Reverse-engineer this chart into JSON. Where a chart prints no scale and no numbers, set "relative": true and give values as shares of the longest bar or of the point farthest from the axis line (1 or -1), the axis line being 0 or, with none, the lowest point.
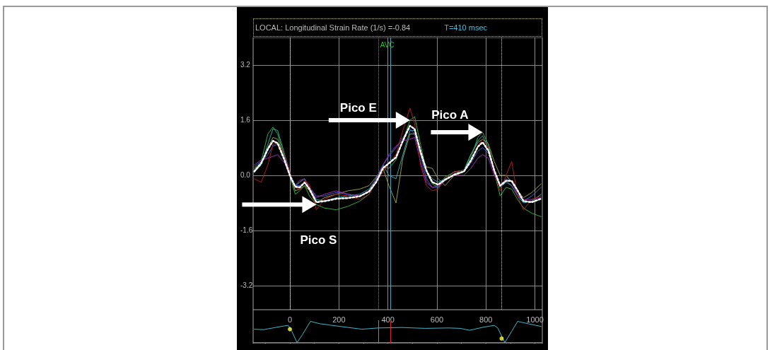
{
  "chart_data": [
    {
      "type": "line",
      "title": "LOCAL: Longitudinal Strain Rate (1/s) =-0.84",
      "subtitle": "T=410 msec",
      "x": [
        -145,
        -117,
        -90,
        -69,
        -50,
        -21,
        3,
        22,
        40,
        60,
        80,
        108,
        141,
        189,
        237,
        285,
        323,
        352,
        380,
        404,
        433,
        461,
        490,
        509,
        533,
        557,
        581,
        605,
        633,
        671,
        710,
        738,
        767,
        786,
        810,
        834,
        858,
        882,
        905,
        929,
        953,
        987,
        1025
      ],
      "series": [
        {
          "color": "#9a9a3a",
          "values": [
            0.2,
            0.35,
            0.8,
            1.1,
            1.05,
            0.5,
            0.0,
            -0.45,
            -0.4,
            -0.3,
            -0.45,
            -0.8,
            -0.65,
            -0.55,
            -0.45,
            -0.4,
            -0.3,
            -0.05,
            0.2,
            -0.3,
            -0.8,
            0.5,
            1.2,
            1.2,
            0.6,
            0.25,
            0.2,
            -0.1,
            -0.3,
            0.0,
            0.1,
            0.6,
            0.95,
            1.05,
            0.9,
            0.4,
            0.0,
            0.0,
            -0.2,
            -0.45,
            -0.65,
            -0.5,
            -0.25
          ]
        },
        {
          "color": "#2fae3a",
          "values": [
            0.15,
            0.4,
            1.2,
            1.4,
            1.2,
            0.5,
            -0.1,
            -0.55,
            -0.45,
            -0.3,
            -0.6,
            -0.85,
            -0.95,
            -1.0,
            -0.9,
            -0.75,
            -0.55,
            -0.2,
            0.25,
            0.2,
            0.45,
            1.0,
            1.6,
            1.7,
            0.9,
            0.1,
            -0.25,
            -0.35,
            -0.05,
            0.1,
            0.1,
            0.5,
            1.1,
            1.25,
            0.9,
            0.1,
            -0.6,
            -0.35,
            -0.4,
            -0.7,
            -0.95,
            -1.1,
            -1.2
          ]
        },
        {
          "color": "#2aa6b0",
          "values": [
            0.1,
            0.3,
            0.9,
            1.35,
            1.3,
            0.6,
            0.0,
            -0.3,
            -0.2,
            -0.1,
            -0.4,
            -0.7,
            -0.75,
            -0.65,
            -0.6,
            -0.55,
            -0.4,
            -0.1,
            0.3,
            0.0,
            -0.1,
            0.6,
            1.3,
            1.3,
            0.6,
            0.1,
            -0.1,
            -0.2,
            -0.1,
            0.1,
            0.15,
            0.6,
            1.0,
            1.15,
            0.8,
            0.1,
            -0.35,
            -0.2,
            -0.3,
            -0.6,
            -0.8,
            -0.75,
            -0.55
          ]
        },
        {
          "color": "#3f5fd0",
          "values": [
            0.25,
            0.4,
            0.6,
            0.85,
            0.9,
            0.5,
            0.0,
            -0.3,
            -0.3,
            -0.2,
            -0.35,
            -0.6,
            -0.6,
            -0.5,
            -0.55,
            -0.6,
            -0.45,
            -0.1,
            0.3,
            0.55,
            0.8,
            1.1,
            1.35,
            1.2,
            0.6,
            -0.1,
            -0.35,
            -0.35,
            -0.15,
            0.05,
            0.1,
            0.35,
            0.7,
            0.8,
            0.65,
            0.1,
            -0.3,
            -0.1,
            -0.2,
            -0.55,
            -0.75,
            -0.6,
            -0.35
          ]
        },
        {
          "color": "#a02ab0",
          "values": [
            0.3,
            0.45,
            0.5,
            0.55,
            0.6,
            0.35,
            -0.05,
            -0.3,
            -0.15,
            -0.1,
            -0.35,
            -0.65,
            -0.55,
            -0.45,
            -0.55,
            -0.6,
            -0.45,
            -0.15,
            0.3,
            0.6,
            0.85,
            1.0,
            1.05,
            1.1,
            0.4,
            -0.2,
            -0.35,
            -0.3,
            -0.15,
            0.0,
            0.0,
            0.2,
            0.5,
            0.6,
            0.5,
            0.0,
            -0.3,
            -0.15,
            -0.3,
            -0.6,
            -0.7,
            -0.7,
            -0.65
          ]
        },
        {
          "color": "#b01c1c",
          "values": [
            -0.1,
            -0.2,
            0.3,
            0.9,
            0.95,
            0.6,
            0.0,
            -0.35,
            -0.4,
            -0.15,
            -0.28,
            -1.0,
            -0.7,
            -0.55,
            -0.6,
            -0.7,
            -0.55,
            -0.2,
            0.1,
            0.35,
            0.6,
            1.3,
            1.95,
            1.5,
            0.3,
            -0.3,
            -0.45,
            -0.4,
            -0.1,
            0.1,
            0.15,
            0.4,
            0.85,
            1.05,
            0.8,
            0.1,
            -0.45,
            0.0,
            0.4,
            -0.6,
            -1.0,
            -0.7,
            -0.6
          ]
        },
        {
          "color": "#ffffff",
          "line_style": "dotted",
          "values": [
            0.11,
            0.35,
            0.76,
            1.0,
            0.93,
            0.42,
            -0.06,
            -0.33,
            -0.35,
            -0.21,
            -0.4,
            -0.78,
            -0.75,
            -0.68,
            -0.66,
            -0.61,
            -0.47,
            -0.2,
            0.21,
            0.35,
            0.52,
            1.0,
            1.44,
            1.34,
            0.69,
            0.14,
            -0.2,
            -0.27,
            -0.13,
            0.02,
            0.11,
            0.42,
            0.83,
            0.96,
            0.72,
            0.14,
            -0.3,
            -0.16,
            -0.16,
            -0.44,
            -0.75,
            -0.78,
            -0.68
          ]
        }
      ],
      "xlim": [
        -150,
        1030
      ],
      "xticks": [
        0,
        200,
        400,
        600,
        800,
        1000
      ],
      "ylim": [
        -3.9,
        4.0
      ],
      "yticks": [
        -3.2,
        -1.6,
        {
          "value": 0,
          "label": "0.0"
        },
        1.6,
        3.2
      ],
      "tick_labels": "y",
      "grid": true,
      "marker": "none",
      "ref_lines": [
        {
          "axis": "x",
          "value": 0,
          "color": "#d8d860",
          "line_style": "dotted"
        },
        {
          "axis": "x",
          "value": 862,
          "color": "#d8d860",
          "line_style": "dotted"
        },
        {
          "axis": "x",
          "value": 360,
          "label": "AVC",
          "color": "#2fbf2f",
          "line_style": "dotted"
        },
        {
          "axis": "x",
          "value": 410,
          "color": "#3aa8c0",
          "line_style": "solid"
        }
      ],
      "annotations": [
        {
          "text": "Pico E",
          "x": 490,
          "y": 1.6
        },
        {
          "text": "Pico A",
          "x": 786,
          "y": 1.25
        },
        {
          "text": "Pico S",
          "x": 108,
          "y": -0.85
        }
      ]
    },
    {
      "type": "line",
      "relative": true,
      "x": [
        -145,
        -107,
        -69,
        -21,
        -7,
        8,
        29,
        51,
        84,
        122,
        199,
        294,
        361,
        456,
        552,
        647,
        695,
        733,
        791,
        834,
        848,
        877,
        905,
        929,
        972,
        1025
      ],
      "series": [
        {
          "color": "#3ab8c8",
          "values": [
            0.63,
            0.61,
            0.69,
            0.79,
            0.81,
            0.53,
            0,
            0.37,
            1,
            0.89,
            0.77,
            0.63,
            0.69,
            0.71,
            0.67,
            0.69,
            0.67,
            0.58,
            0.73,
            0.81,
            0.69,
            0,
            0.53,
            1,
            0.89,
            0.76
          ]
        },
        {
          "type": "scatter",
          "marker": "circle",
          "color": "#ffff33",
          "x": [
            0,
            864
          ],
          "values": [
            0.63,
            0.19
          ]
        }
      ],
      "xlim": [
        -150,
        1030
      ],
      "xticks": [
        {
          "value": -100,
          "label": null
        },
        0,
        {
          "value": 100,
          "label": null
        },
        200,
        {
          "value": 300,
          "label": null
        },
        400,
        {
          "value": 500,
          "label": null
        },
        600,
        {
          "value": 700,
          "label": null
        },
        800,
        {
          "value": 900,
          "label": null
        },
        1000
      ],
      "tick_labels": "x",
      "marker": "none",
      "grid": false,
      "ref_lines": [
        {
          "axis": "x",
          "value": 360,
          "color": "#2fbf2f",
          "line_style": "solid"
        },
        {
          "axis": "x",
          "value": 410,
          "color": "#e02020",
          "line_style": "solid"
        }
      ]
    }
  ]
}
